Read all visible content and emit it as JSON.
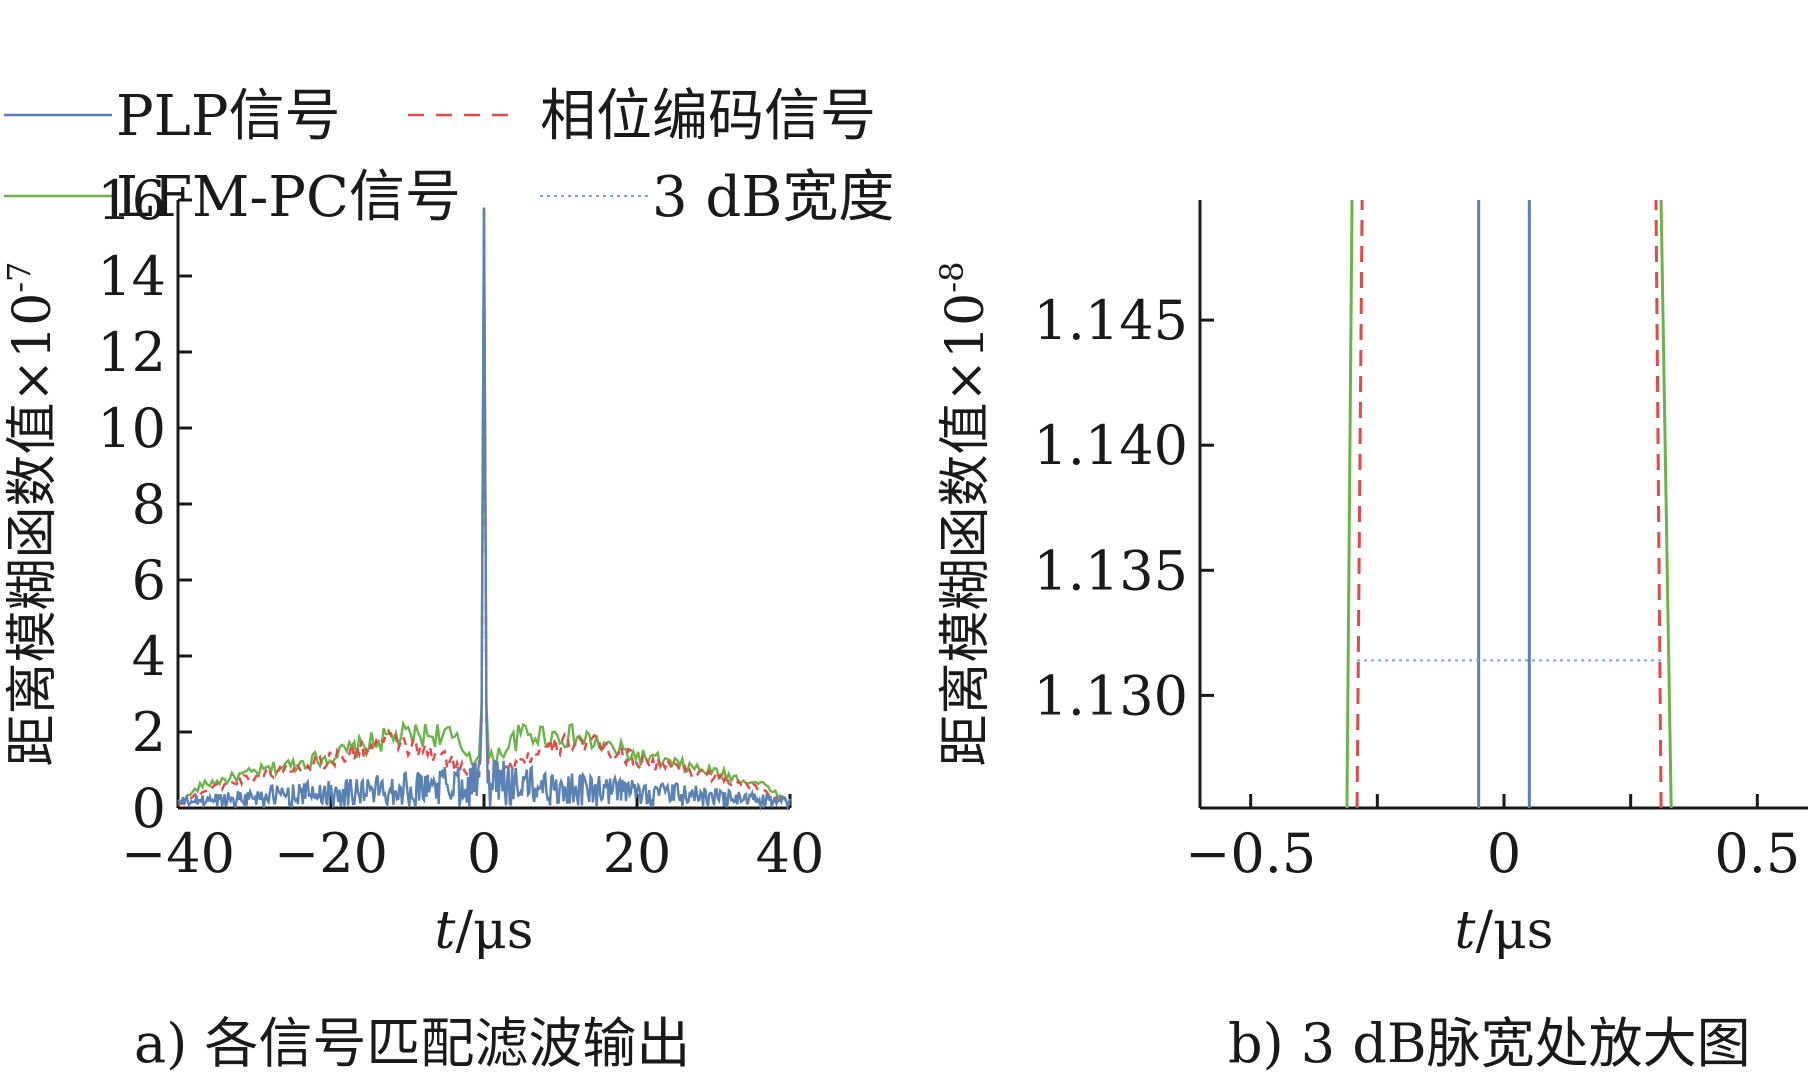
{
  "colors": {
    "plp": "#5a82b4",
    "phase": "#e8474a",
    "lfm": "#6ab548",
    "db3": "#7fa3d4",
    "axis": "#1a1a1a"
  },
  "legend": {
    "items": [
      {
        "key": "plp",
        "label": "PLP信号",
        "style": "solid"
      },
      {
        "key": "phase",
        "label": "相位编码信号",
        "style": "dashed"
      },
      {
        "key": "lfm",
        "label": "LFM-PC信号",
        "style": "solid"
      },
      {
        "key": "db3",
        "label": "3 dB宽度",
        "style": "dotted"
      }
    ]
  },
  "chart_data": [
    {
      "type": "line",
      "caption": "a) 各信号匹配滤波输出",
      "xlabel_italic": "t",
      "xlabel_rest": "/μs",
      "ylabel": "距离模糊函数值×10",
      "ylabel_exp": "-7",
      "xlim": [
        -40,
        40
      ],
      "ylim": [
        0,
        16
      ],
      "xticks": [
        -40,
        -20,
        0,
        20,
        40
      ],
      "xtick_labels": [
        "−40",
        "−20",
        "0",
        "20",
        "40"
      ],
      "yticks": [
        0,
        2,
        4,
        6,
        8,
        10,
        12,
        14,
        16
      ],
      "ytick_labels": [
        "0",
        "2",
        "4",
        "6",
        "8",
        "10",
        "12",
        "14",
        "16"
      ],
      "grid": false,
      "series": [
        {
          "name": "PLP信号",
          "key": "plp",
          "peak": 15.8,
          "envelope": [
            [
              -40,
              0.25
            ],
            [
              -25,
              0.6
            ],
            [
              -8,
              0.9
            ],
            [
              -1,
              1.2
            ],
            [
              1,
              1.2
            ],
            [
              8,
              0.9
            ],
            [
              25,
              0.6
            ],
            [
              40,
              0.25
            ]
          ]
        },
        {
          "name": "相位编码信号",
          "key": "phase",
          "peak": 15.8,
          "envelope": [
            [
              -40,
              0.1
            ],
            [
              -37,
              0.5
            ],
            [
              -30,
              1.0
            ],
            [
              -20,
              1.5
            ],
            [
              -12,
              2.1
            ],
            [
              -5,
              1.5
            ],
            [
              -1,
              1.0
            ],
            [
              1,
              1.0
            ],
            [
              5,
              1.5
            ],
            [
              12,
              2.1
            ],
            [
              20,
              1.5
            ],
            [
              30,
              1.0
            ],
            [
              37,
              0.5
            ],
            [
              40,
              0.1
            ]
          ]
        },
        {
          "name": "LFM-PC信号",
          "key": "lfm",
          "peak": 15.8,
          "envelope": [
            [
              -40,
              0.1
            ],
            [
              -37,
              0.7
            ],
            [
              -30,
              1.1
            ],
            [
              -20,
              1.6
            ],
            [
              -12,
              2.2
            ],
            [
              -5,
              2.3
            ],
            [
              -1,
              1.5
            ],
            [
              1,
              1.5
            ],
            [
              5,
              2.3
            ],
            [
              12,
              2.2
            ],
            [
              20,
              1.6
            ],
            [
              30,
              1.1
            ],
            [
              37,
              0.7
            ],
            [
              40,
              0.1
            ]
          ]
        }
      ]
    },
    {
      "type": "line",
      "caption": "b) 3 dB脉宽处放大图",
      "xlabel_italic": "t",
      "xlabel_rest": "/μs",
      "ylabel": "距离模糊函数值×10",
      "ylabel_exp": "-8",
      "xlim": [
        -0.6,
        0.6
      ],
      "ylim": [
        1.1255,
        1.1498
      ],
      "xticks": [
        -0.5,
        -0.25,
        0,
        0.25,
        0.5
      ],
      "xtick_labels": [
        "−0.5",
        "",
        "0",
        "",
        "0.5"
      ],
      "yticks": [
        1.13,
        1.135,
        1.14,
        1.145
      ],
      "ytick_labels": [
        "1.130",
        "1.135",
        "1.140",
        "1.145"
      ],
      "grid": false,
      "series": [
        {
          "name": "PLP信号",
          "key": "plp",
          "segments": [
            [
              [
                -0.05,
                1.1255
              ],
              [
                -0.05,
                1.1498
              ]
            ],
            [
              [
                0.05,
                1.1255
              ],
              [
                0.05,
                1.1498
              ]
            ]
          ]
        },
        {
          "name": "相位编码信号",
          "key": "phase",
          "segments": [
            [
              [
                -0.29,
                1.1255
              ],
              [
                -0.28,
                1.1498
              ]
            ],
            [
              [
                0.31,
                1.1255
              ],
              [
                0.3,
                1.1498
              ]
            ]
          ]
        },
        {
          "name": "LFM-PC信号",
          "key": "lfm",
          "segments": [
            [
              [
                -0.31,
                1.1255
              ],
              [
                -0.3,
                1.1498
              ]
            ],
            [
              [
                0.33,
                1.1255
              ],
              [
                0.31,
                1.1498
              ]
            ]
          ]
        },
        {
          "name": "3 dB宽度",
          "key": "db3",
          "segments": [
            [
              [
                -0.29,
                1.1314
              ],
              [
                0.31,
                1.1314
              ]
            ]
          ]
        }
      ]
    }
  ]
}
